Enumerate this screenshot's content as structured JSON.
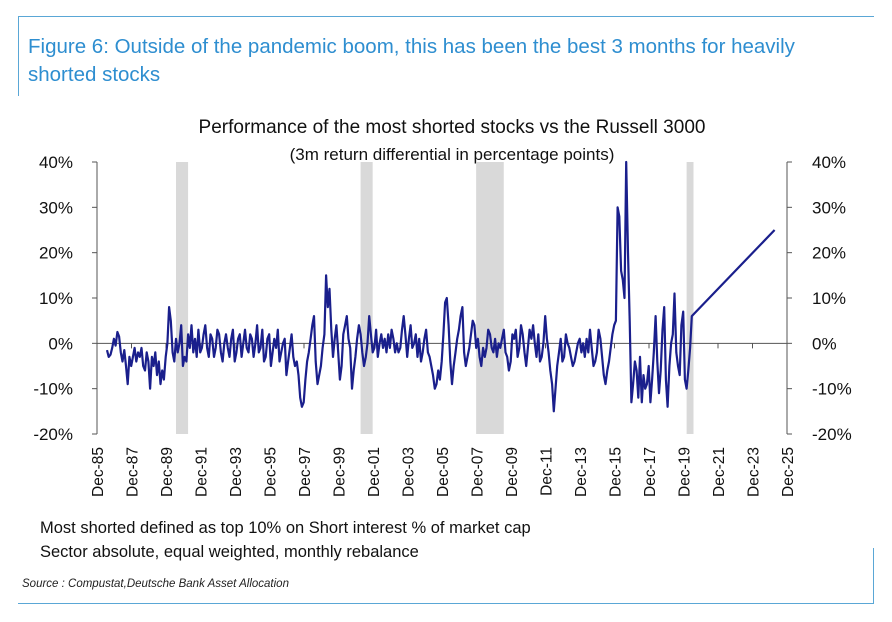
{
  "figure": {
    "title": "Figure 6: Outside of the pandemic boom, this has been the best 3 months for heavily shorted stocks",
    "source": "Source : Compustat,Deutsche Bank Asset Allocation",
    "notes": [
      "Most shorted defined as top 10% on Short interest % of market cap",
      "Sector absolute, equal weighted, monthly rebalance"
    ],
    "accent_color": "#2e8ed0"
  },
  "chart_data": {
    "type": "line",
    "title": "Performance of the most shorted stocks vs the Russell 3000",
    "subtitle": "(3m return differential in percentage points)",
    "xlabel": "",
    "ylabel": "",
    "ylim": [
      -20,
      40
    ],
    "xlim": [
      1985.92,
      2025.92
    ],
    "y_ticks": [
      -20,
      -10,
      0,
      10,
      20,
      30,
      40
    ],
    "y_tick_labels": [
      "-20%",
      "-10%",
      "0%",
      "10%",
      "20%",
      "30%",
      "40%"
    ],
    "secondary_y_axis": true,
    "x_ticks": [
      1985.92,
      1987.92,
      1989.92,
      1991.92,
      1993.92,
      1995.92,
      1997.92,
      1999.92,
      2001.92,
      2003.92,
      2005.92,
      2007.92,
      2009.92,
      2011.92,
      2013.92,
      2015.92,
      2017.92,
      2019.92,
      2021.92,
      2023.92,
      2025.92
    ],
    "x_tick_labels": [
      "Dec-85",
      "Dec-87",
      "Dec-89",
      "Dec-91",
      "Dec-93",
      "Dec-95",
      "Dec-97",
      "Dec-99",
      "Dec-01",
      "Dec-03",
      "Dec-05",
      "Dec-07",
      "Dec-09",
      "Dec-11",
      "Dec-13",
      "Dec-15",
      "Dec-17",
      "Dec-19",
      "Dec-21",
      "Dec-23",
      "Dec-25"
    ],
    "shaded_periods": [
      [
        1990.5,
        1991.2
      ],
      [
        2001.2,
        2001.9
      ],
      [
        2007.9,
        2009.5
      ],
      [
        2020.1,
        2020.5
      ]
    ],
    "shade_color": "#d9d9d9",
    "series": [
      {
        "name": "",
        "color": "#1a1f8c",
        "x_start": 1986.5,
        "x_step": 0.1,
        "values": [
          -1.5,
          -3,
          -2.5,
          -1,
          1,
          -0.5,
          2.5,
          1.5,
          -2,
          -4,
          -1.5,
          -5,
          -9,
          -3,
          -5,
          -3,
          -1,
          -4,
          -2,
          -3,
          -1,
          -5,
          -6,
          -2,
          -4,
          -10,
          -3,
          -5,
          -2,
          -7,
          -4,
          -9,
          -6,
          -8,
          -3,
          0,
          8,
          5,
          -2,
          -4,
          1,
          -2,
          0,
          4,
          -5,
          -3,
          -4,
          2,
          -1,
          4,
          -2,
          1,
          -3,
          3,
          -2,
          -1,
          2,
          4,
          -1,
          -3,
          2,
          1,
          -3,
          -1,
          3,
          2,
          -2,
          -4,
          0,
          2,
          -1,
          -3,
          1,
          3,
          -4,
          -2,
          1,
          2,
          -3,
          0,
          3,
          -1,
          -2,
          2,
          1,
          -3,
          0,
          4,
          -2,
          -1,
          3,
          -4,
          -3,
          1,
          2,
          -5,
          -2,
          1,
          -1,
          3,
          -4,
          -2,
          0,
          1,
          -7,
          -4,
          -1,
          2,
          -3,
          -5,
          -4,
          -7,
          -12,
          -14,
          -13,
          -8,
          -4,
          -2,
          1,
          4,
          6,
          -4,
          -9,
          -7,
          -5,
          -1,
          2,
          15,
          8,
          12,
          3,
          -3,
          1,
          4,
          -2,
          -8,
          -5,
          2,
          4,
          6,
          1,
          -1,
          -10,
          -6,
          -3,
          1,
          4,
          2,
          -2,
          -5,
          -3,
          0,
          6,
          2,
          -2,
          -1,
          3,
          -3,
          0,
          2,
          -1,
          1,
          -2,
          2,
          -1,
          3,
          1,
          -2,
          0,
          -2,
          -1,
          3,
          6,
          2,
          -3,
          1,
          4,
          -1,
          0,
          2,
          -3,
          1,
          -4,
          -2,
          1,
          3,
          -2,
          -3,
          -5,
          -7,
          -10,
          -9,
          -6,
          -8,
          -4,
          2,
          9,
          10,
          4,
          -4,
          -9,
          -5,
          -2,
          1,
          3,
          6,
          8,
          -2,
          -5,
          -3,
          -1,
          2,
          5,
          4,
          -1,
          1,
          -3,
          -5,
          -1,
          -3,
          -1,
          3,
          2,
          -1,
          -2,
          1,
          -3,
          0,
          -1,
          1,
          3,
          -2,
          -3,
          -6,
          -4,
          2,
          1,
          3,
          -3,
          -1,
          4,
          2,
          -2,
          -5,
          -1,
          3,
          1,
          4,
          0,
          -3,
          2,
          -4,
          -3,
          0,
          6,
          1,
          -2,
          -6,
          -9,
          -15,
          -10,
          -5,
          -2,
          1,
          -4,
          -3,
          2,
          0,
          -1,
          -3,
          -5,
          -4,
          -2,
          0,
          1,
          -2,
          0,
          -3,
          1,
          -2,
          3,
          -1,
          -5,
          -4,
          -2,
          3,
          1,
          -3,
          -7,
          -9,
          -6,
          -4,
          -1,
          2,
          4,
          5,
          30,
          28,
          16,
          14,
          10,
          40,
          20,
          5,
          -13,
          -9,
          -4,
          -6,
          -12,
          -3,
          -13,
          -7,
          -10,
          -9,
          -5,
          -13,
          -8,
          -2,
          6,
          -4,
          -11,
          -6,
          3,
          8,
          -8,
          -14,
          -5,
          0,
          2,
          11,
          -2,
          -5,
          -7,
          4,
          7,
          -8,
          -10,
          -6,
          -1,
          6,
          25
        ],
        "last_value_x": 2025.2
      }
    ]
  }
}
